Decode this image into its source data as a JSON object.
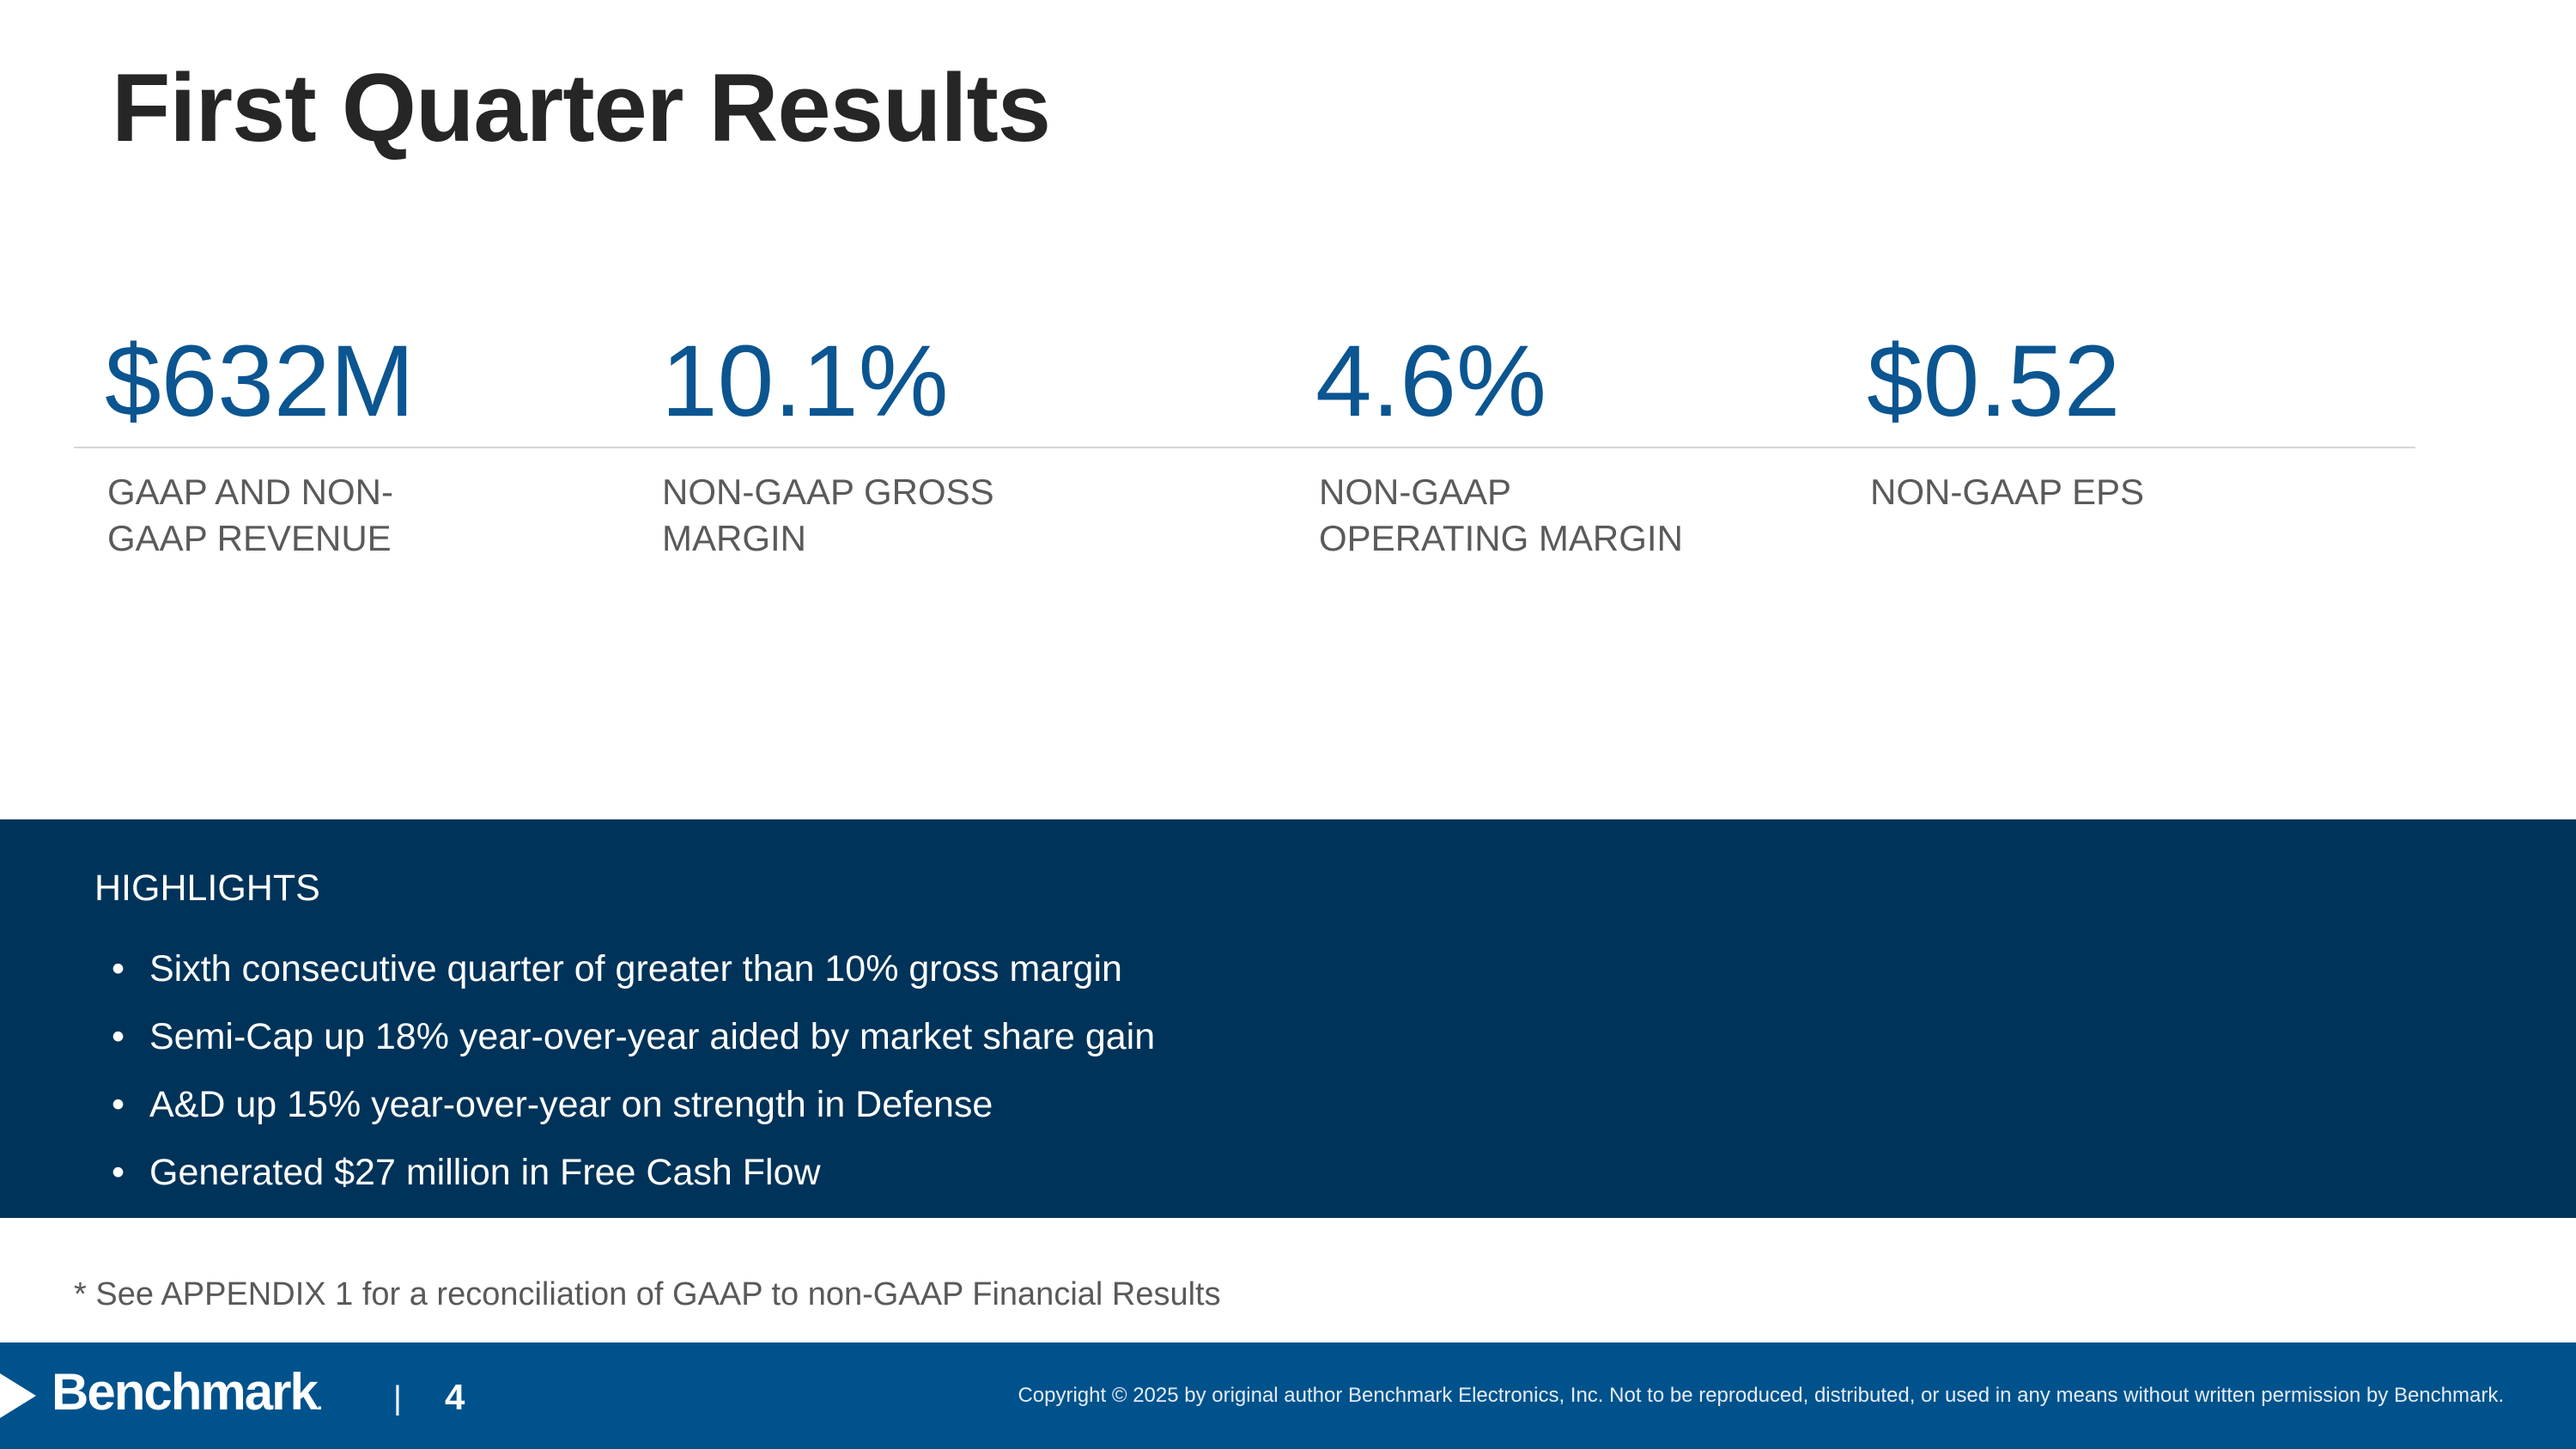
{
  "title": "First Quarter Results",
  "kpis": [
    {
      "value": "$632M",
      "label": "GAAP AND NON-\nGAAP REVENUE"
    },
    {
      "value": "10.1%",
      "label": "NON-GAAP GROSS\nMARGIN"
    },
    {
      "value": "4.6%",
      "label": "NON-GAAP\nOPERATING  MARGIN"
    },
    {
      "value": "$0.52",
      "label": "NON-GAAP EPS"
    }
  ],
  "highlights": {
    "heading": "HIGHLIGHTS",
    "bullet_glyph": "•",
    "items": [
      "Sixth consecutive quarter of greater than 10% gross margin",
      "Semi-Cap up 18% year-over-year aided by market share gain",
      "A&D up 15% year-over-year on strength in Defense",
      "Generated $27 million in Free Cash Flow"
    ]
  },
  "footnote": "* See APPENDIX 1 for a reconciliation of GAAP to non-GAAP Financial Results",
  "footer": {
    "logo_text": "Benchmark",
    "logo_suffix": ".",
    "separator": "|",
    "page_number": "4",
    "copyright": "Copyright © 2025 by original author Benchmark Electronics, Inc. Not to be reproduced, distributed, or used in any means without written permission by Benchmark."
  },
  "colors": {
    "kpi_blue": "#0b5591",
    "highlights_bg": "#003359",
    "footer_bg": "#00528c",
    "title_text": "#262626"
  }
}
